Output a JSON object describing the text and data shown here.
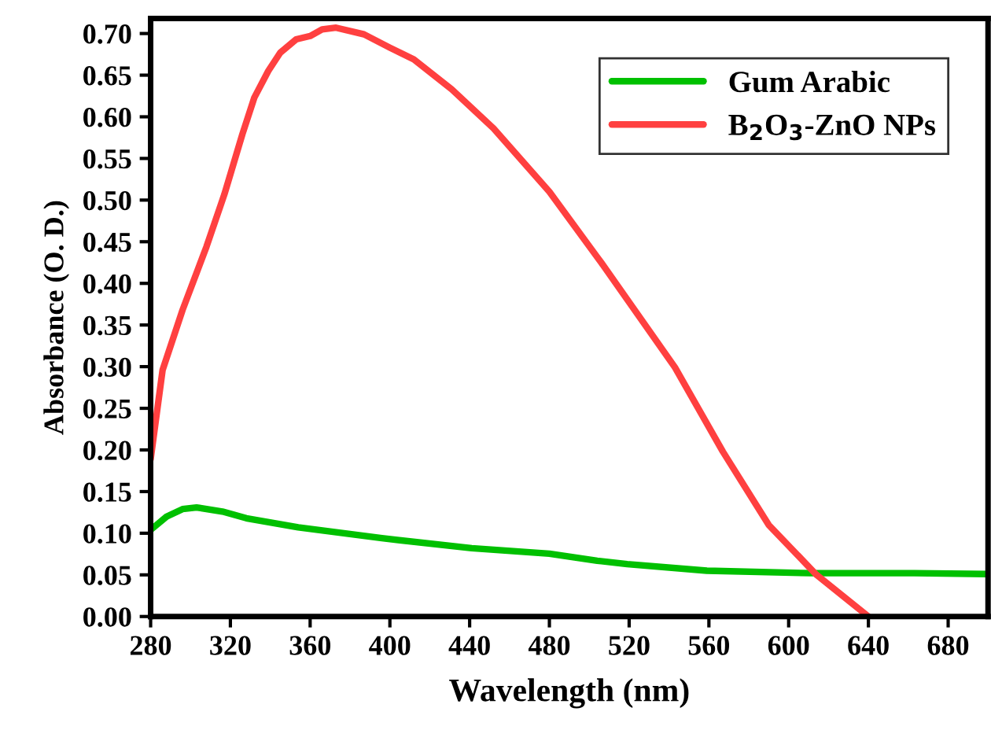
{
  "chart_data": {
    "type": "line",
    "xlabel": "Wavelength (nm)",
    "ylabel": "Absorbance (O. D.)",
    "xlim": [
      280,
      700
    ],
    "xticks": [
      280,
      320,
      360,
      400,
      440,
      480,
      520,
      560,
      600,
      640,
      680
    ],
    "ylim": [
      0,
      0.718
    ],
    "yticks": [
      {
        "value": 0,
        "label": "0.00"
      },
      {
        "value": 0.05,
        "label": "0.05"
      },
      {
        "value": 0.1,
        "label": "0.10"
      },
      {
        "value": 0.15,
        "label": "0.15"
      },
      {
        "value": 0.2,
        "label": "0.20"
      },
      {
        "value": 0.25,
        "label": "0.25"
      },
      {
        "value": 0.3,
        "label": "0.30"
      },
      {
        "value": 0.35,
        "label": "0.35"
      },
      {
        "value": 0.4,
        "label": "0.40"
      },
      {
        "value": 0.45,
        "label": "0.45"
      },
      {
        "value": 0.5,
        "label": "0.50"
      },
      {
        "value": 0.55,
        "label": "0.55"
      },
      {
        "value": 0.6,
        "label": "0.60"
      },
      {
        "value": 0.65,
        "label": "0.65"
      },
      {
        "value": 0.7,
        "label": "0.70"
      }
    ],
    "grid": false,
    "legend": "top right",
    "marker": "none",
    "line_style": "solid",
    "series": [
      {
        "name": "Gum Arabic",
        "color": "#00c000",
        "x": [
          280,
          288,
          296,
          303,
          316,
          328,
          354,
          396,
          441,
          480,
          504,
          519,
          559,
          611,
          663,
          699
        ],
        "values": [
          0.104,
          0.12,
          0.129,
          0.131,
          0.126,
          0.118,
          0.107,
          0.094,
          0.082,
          0.0755,
          0.067,
          0.063,
          0.055,
          0.052,
          0.052,
          0.051
        ]
      },
      {
        "name": "B$_{2}$O$_{3}$-ZnO NPs",
        "color": "#ff4040",
        "x": [
          280,
          286,
          296,
          308,
          317,
          326,
          332,
          339,
          345,
          353,
          360,
          366,
          373,
          387,
          400,
          412,
          431,
          452,
          480,
          506,
          543,
          567,
          590,
          614,
          640
        ],
        "values": [
          0.189,
          0.296,
          0.368,
          0.444,
          0.507,
          0.579,
          0.623,
          0.655,
          0.677,
          0.693,
          0.697,
          0.705,
          0.707,
          0.699,
          0.683,
          0.669,
          0.633,
          0.586,
          0.51,
          0.425,
          0.299,
          0.198,
          0.11,
          0.05,
          0.0
        ]
      }
    ]
  }
}
